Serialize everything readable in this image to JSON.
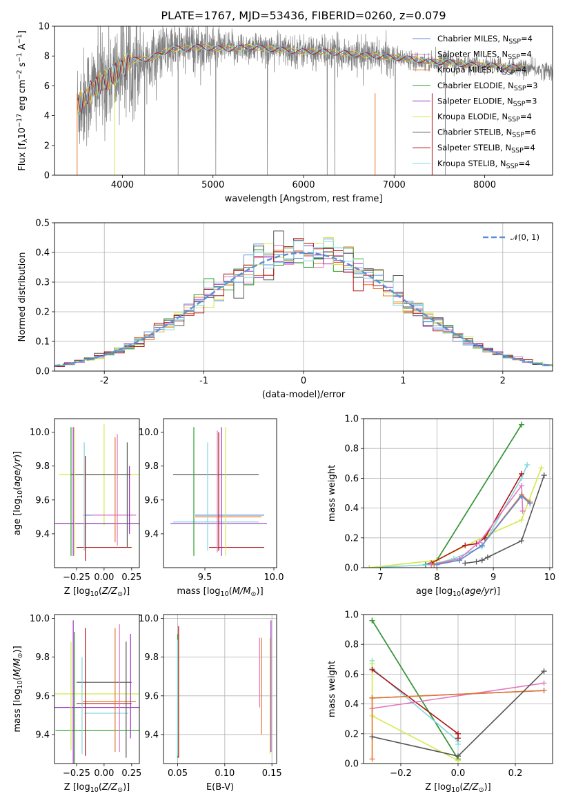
{
  "figure_title": "PLATE=1767, MJD=53436, FIBERID=0260, z=0.079",
  "colors": {
    "Chabrier MILES": "#5b8fd6",
    "Salpeter MILES": "#e377c2",
    "Kroupa MILES": "#e8742a",
    "Chabrier ELODIE": "#2ca02c",
    "Salpeter ELODIE": "#9b30c0",
    "Kroupa ELODIE": "#d4e84a",
    "Chabrier STELIB": "#555555",
    "Salpeter STELIB": "#b01010",
    "Kroupa STELIB": "#7fd8e0"
  },
  "chart_data": [
    {
      "id": "spectrum",
      "type": "line",
      "title": "PLATE=1767, MJD=53436, FIBERID=0260, z=0.079",
      "xlabel": "wavelength [Angstrom, rest frame]",
      "ylabel": "Flux [f_λ 10^-17 erg cm^-2 s^-1 A^-1]",
      "xlim": [
        3250,
        8750
      ],
      "ylim": [
        0,
        10
      ],
      "xticks": [
        4000,
        5000,
        6000,
        7000,
        8000
      ],
      "yticks": [
        0,
        2,
        4,
        6,
        8,
        10
      ],
      "grid": false,
      "legend_position": "upper-right",
      "legend": [
        {
          "name": "Chabrier MILES",
          "nssp": "4"
        },
        {
          "name": "Salpeter MILES",
          "nssp": "4"
        },
        {
          "name": "Kroupa MILES",
          "nssp": "4"
        },
        {
          "name": "Chabrier ELODIE",
          "nssp": "3"
        },
        {
          "name": "Salpeter ELODIE",
          "nssp": "3"
        },
        {
          "name": "Kroupa ELODIE",
          "nssp": "4"
        },
        {
          "name": "Chabrier STELIB",
          "nssp": "6"
        },
        {
          "name": "Salpeter STELIB",
          "nssp": "4"
        },
        {
          "name": "Kroupa STELIB",
          "nssp": "4"
        }
      ],
      "data_color": "#808080",
      "data_range": [
        3500,
        8750
      ],
      "continuum": [
        [
          3500,
          4.6
        ],
        [
          3600,
          5.3
        ],
        [
          3700,
          5.9
        ],
        [
          3800,
          6.4
        ],
        [
          3900,
          6.6
        ],
        [
          4000,
          7.3
        ],
        [
          4100,
          7.7
        ],
        [
          4200,
          7.8
        ],
        [
          4300,
          7.8
        ],
        [
          4400,
          8.1
        ],
        [
          4500,
          8.4
        ],
        [
          4600,
          8.5
        ],
        [
          4700,
          8.5
        ],
        [
          4800,
          8.6
        ],
        [
          4900,
          8.6
        ],
        [
          5000,
          8.5
        ],
        [
          5200,
          8.5
        ],
        [
          5400,
          8.6
        ],
        [
          5600,
          8.5
        ],
        [
          5800,
          8.4
        ],
        [
          6000,
          8.3
        ],
        [
          6200,
          8.3
        ],
        [
          6400,
          8.2
        ],
        [
          6600,
          8.1
        ],
        [
          6800,
          8.0
        ],
        [
          7000,
          7.9
        ],
        [
          7200,
          7.8
        ],
        [
          7400,
          7.6
        ],
        [
          7600,
          7.6
        ],
        [
          7800,
          7.4
        ],
        [
          8000,
          7.4
        ],
        [
          8200,
          7.3
        ],
        [
          8400,
          7.2
        ],
        [
          8750,
          7.0
        ]
      ]
    },
    {
      "id": "residuals",
      "type": "line",
      "xlabel": "(data-model)/error",
      "ylabel": "Normed distribution",
      "xlim": [
        -2.5,
        2.5
      ],
      "ylim": [
        0,
        0.5
      ],
      "xticks": [
        -2,
        -1,
        0,
        1,
        2
      ],
      "yticks": [
        0.0,
        0.1,
        0.2,
        0.3,
        0.4,
        0.5
      ],
      "grid": true,
      "legend_position": "upper-right",
      "series": [
        {
          "name": "𝒩(0, 1)",
          "mean": 0,
          "sigma": 1,
          "color": "#5b8fd6"
        }
      ],
      "bins": 50
    },
    {
      "id": "age_vs_Z",
      "type": "scatter",
      "xlabel": "Z [log10(Z/Z⊙)]",
      "ylabel": "age [log10(age/yr)]",
      "xlim": [
        -0.45,
        0.32
      ],
      "ylim": [
        9.2,
        10.08
      ],
      "xticks": [
        -0.25,
        0.0,
        0.25
      ],
      "xticklabels": [
        "−0.25",
        "0.00",
        "0.25"
      ],
      "yticks": [
        9.4,
        9.6,
        9.8,
        10.0
      ],
      "grid": false,
      "points": [
        {
          "series": "Kroupa ELODIE",
          "x": 0.0,
          "xerr": 0.41,
          "y": 9.75,
          "yerr": 0.3
        },
        {
          "series": "Chabrier STELIB",
          "x": -0.03,
          "xerr": 0.27,
          "y": 9.75,
          "yerr": 0.0
        },
        {
          "series": "Chabrier MILES",
          "x": 0.05,
          "xerr": 0.24,
          "y": 9.51,
          "yerr": 0.0
        },
        {
          "series": "Salpeter MILES",
          "x": 0.09,
          "xerr": 0.2,
          "y": 9.51,
          "yerr": 0.0
        },
        {
          "series": "Chabrier ELODIE",
          "x": -0.06,
          "xerr": 0.38,
          "y": 9.46,
          "yerr": 0.0
        },
        {
          "series": "Salpeter ELODIE",
          "x": -0.05,
          "xerr": 0.4,
          "y": 9.46,
          "yerr": 0.0
        },
        {
          "series": "Salpeter STELIB",
          "x": 0.0,
          "xerr": 0.25,
          "y": 9.32,
          "yerr": 0.0
        },
        {
          "series": "Chabrier ELODIE",
          "x": -0.3,
          "xerr": 0.0,
          "y": 9.65,
          "yerr": 0.38
        },
        {
          "series": "Salpeter ELODIE",
          "x": -0.28,
          "xerr": 0.0,
          "y": 9.65,
          "yerr": 0.38
        },
        {
          "series": "Kroupa ELODIE",
          "x": -0.27,
          "xerr": 0.0,
          "y": 9.65,
          "yerr": 0.38
        },
        {
          "series": "Kroupa STELIB",
          "x": -0.18,
          "xerr": 0.0,
          "y": 9.62,
          "yerr": 0.32
        },
        {
          "series": "Salpeter STELIB",
          "x": -0.17,
          "xerr": 0.0,
          "y": 9.55,
          "yerr": 0.31
        },
        {
          "series": "Kroupa MILES",
          "x": 0.1,
          "xerr": 0.0,
          "y": 9.66,
          "yerr": 0.31
        },
        {
          "series": "Salpeter MILES",
          "x": 0.12,
          "xerr": 0.0,
          "y": 9.66,
          "yerr": 0.33
        },
        {
          "series": "Chabrier STELIB",
          "x": 0.21,
          "xerr": 0.0,
          "y": 9.63,
          "yerr": 0.31
        },
        {
          "series": "Salpeter ELODIE",
          "x": 0.23,
          "xerr": 0.0,
          "y": 9.6,
          "yerr": 0.2
        }
      ]
    },
    {
      "id": "age_vs_mass",
      "type": "scatter",
      "xlabel": "mass [log10(M/M⊙)]",
      "ylabel": "",
      "xlim": [
        9.2,
        10.02
      ],
      "ylim": [
        9.2,
        10.08
      ],
      "xticks": [
        9.5,
        10.0
      ],
      "xticklabels": [
        "9.5",
        "10.0"
      ],
      "yticks": [
        9.4,
        9.6,
        9.8,
        10.0
      ],
      "grid": false,
      "points": [
        {
          "series": "Chabrier STELIB",
          "x": 9.58,
          "xerr": 0.31,
          "y": 9.75,
          "yerr": 0.0
        },
        {
          "series": "Chabrier MILES",
          "x": 9.68,
          "xerr": 0.25,
          "y": 9.51,
          "yerr": 0.0
        },
        {
          "series": "Kroupa MILES",
          "x": 9.67,
          "xerr": 0.24,
          "y": 9.5,
          "yerr": 0.0
        },
        {
          "series": "Salpeter ELODIE",
          "x": 9.6,
          "xerr": 0.35,
          "y": 9.46,
          "yerr": 0.0
        },
        {
          "series": "Kroupa STELIB",
          "x": 9.58,
          "xerr": 0.31,
          "y": 9.47,
          "yerr": 0.0
        },
        {
          "series": "Salpeter STELIB",
          "x": 9.73,
          "xerr": 0.2,
          "y": 9.32,
          "yerr": 0.0
        },
        {
          "series": "Chabrier ELODIE",
          "x": 9.42,
          "xerr": 0.0,
          "y": 9.65,
          "yerr": 0.38
        },
        {
          "series": "Kroupa STELIB",
          "x": 9.52,
          "xerr": 0.0,
          "y": 9.62,
          "yerr": 0.32
        },
        {
          "series": "Salpeter MILES",
          "x": 9.59,
          "xerr": 0.0,
          "y": 9.65,
          "yerr": 0.36
        },
        {
          "series": "Salpeter ELODIE",
          "x": 9.62,
          "xerr": 0.0,
          "y": 9.65,
          "yerr": 0.38
        },
        {
          "series": "Salpeter STELIB",
          "x": 9.6,
          "xerr": 0.0,
          "y": 9.65,
          "yerr": 0.35
        },
        {
          "series": "Kroupa ELODIE",
          "x": 9.65,
          "xerr": 0.0,
          "y": 9.65,
          "yerr": 0.38
        }
      ]
    },
    {
      "id": "massweight_vs_age",
      "type": "line",
      "xlabel": "age [log10(age/yr)]",
      "ylabel": "mass weight",
      "xlim": [
        6.7,
        10.05
      ],
      "ylim": [
        0,
        1.0
      ],
      "xticks": [
        7,
        8,
        9,
        10
      ],
      "yticks": [
        0.0,
        0.2,
        0.4,
        0.6,
        0.8,
        1.0
      ],
      "grid": true,
      "series": [
        {
          "name": "Salpeter ELODIE",
          "x": [
            7.8,
            8.0,
            9.5
          ],
          "y": [
            0.02,
            0.05,
            0.96
          ]
        },
        {
          "name": "Chabrier ELODIE",
          "x": [
            7.8,
            8.0,
            9.5
          ],
          "y": [
            0.02,
            0.05,
            0.96
          ]
        },
        {
          "name": "Kroupa STELIB",
          "x": [
            6.8,
            7.9,
            8.3,
            8.8,
            9.5,
            9.6
          ],
          "y": [
            0.0,
            0.02,
            0.06,
            0.14,
            0.6,
            0.69
          ]
        },
        {
          "name": "Kroupa ELODIE",
          "x": [
            6.8,
            8.0,
            8.9,
            9.5,
            9.85
          ],
          "y": [
            0.0,
            0.05,
            0.22,
            0.32,
            0.67
          ]
        },
        {
          "name": "Salpeter STELIB",
          "x": [
            7.9,
            8.5,
            8.7,
            8.85,
            9.5
          ],
          "y": [
            0.03,
            0.15,
            0.16,
            0.2,
            0.63
          ]
        },
        {
          "name": "Salpeter MILES",
          "x": [
            7.9,
            8.4,
            8.75,
            9.5,
            9.52
          ],
          "y": [
            0.02,
            0.06,
            0.17,
            0.55,
            0.38
          ]
        },
        {
          "name": "Kroupa MILES",
          "x": [
            7.95,
            8.4,
            8.8,
            9.5,
            9.65
          ],
          "y": [
            0.02,
            0.05,
            0.15,
            0.49,
            0.44
          ]
        },
        {
          "name": "Chabrier MILES",
          "x": [
            8.0,
            8.4,
            8.8,
            9.5,
            9.65
          ],
          "y": [
            0.02,
            0.05,
            0.15,
            0.48,
            0.43
          ]
        },
        {
          "name": "Chabrier STELIB",
          "x": [
            8.5,
            8.7,
            8.8,
            8.9,
            9.5,
            9.9
          ],
          "y": [
            0.03,
            0.04,
            0.05,
            0.07,
            0.18,
            0.62
          ]
        }
      ]
    },
    {
      "id": "mass_vs_Z",
      "type": "scatter",
      "xlabel": "Z [log10(Z/Z⊙)]",
      "ylabel": "mass [log10(M/M⊙)]",
      "xlim": [
        -0.45,
        0.32
      ],
      "ylim": [
        9.25,
        10.02
      ],
      "xticks": [
        -0.25,
        0.0,
        0.25
      ],
      "xticklabels": [
        "−0.25",
        "0.00",
        "0.25"
      ],
      "yticks": [
        9.4,
        9.6,
        9.8,
        10.0
      ],
      "grid": false,
      "points": [
        {
          "series": "Chabrier STELIB",
          "x": 0.0,
          "xerr": 0.25,
          "y": 9.67,
          "yerr": 0.0
        },
        {
          "series": "Kroupa ELODIE",
          "x": -0.05,
          "xerr": 0.4,
          "y": 9.61,
          "yerr": 0.0
        },
        {
          "series": "Kroupa MILES",
          "x": 0.05,
          "xerr": 0.24,
          "y": 9.57,
          "yerr": 0.0
        },
        {
          "series": "Salpeter STELIB",
          "x": 0.0,
          "xerr": 0.25,
          "y": 9.56,
          "yerr": 0.0
        },
        {
          "series": "Salpeter ELODIE",
          "x": -0.05,
          "xerr": 0.4,
          "y": 9.54,
          "yerr": 0.0
        },
        {
          "series": "Kroupa STELIB",
          "x": 0.02,
          "xerr": 0.2,
          "y": 9.51,
          "yerr": 0.0
        },
        {
          "series": "Chabrier ELODIE",
          "x": -0.06,
          "xerr": 0.38,
          "y": 9.42,
          "yerr": 0.0
        },
        {
          "series": "Kroupa ELODIE",
          "x": -0.3,
          "xerr": 0.0,
          "y": 9.6,
          "yerr": 0.28
        },
        {
          "series": "Salpeter ELODIE",
          "x": -0.28,
          "xerr": 0.0,
          "y": 9.62,
          "yerr": 0.37
        },
        {
          "series": "Chabrier ELODIE",
          "x": -0.27,
          "xerr": 0.0,
          "y": 9.59,
          "yerr": 0.34
        },
        {
          "series": "Kroupa STELIB",
          "x": -0.2,
          "xerr": 0.0,
          "y": 9.55,
          "yerr": 0.25
        },
        {
          "series": "Salpeter STELIB",
          "x": -0.17,
          "xerr": 0.0,
          "y": 9.62,
          "yerr": 0.33
        },
        {
          "series": "Kroupa MILES",
          "x": 0.1,
          "xerr": 0.0,
          "y": 9.63,
          "yerr": 0.32
        },
        {
          "series": "Salpeter MILES",
          "x": 0.14,
          "xerr": 0.0,
          "y": 9.64,
          "yerr": 0.33
        },
        {
          "series": "Chabrier STELIB",
          "x": 0.2,
          "xerr": 0.0,
          "y": 9.58,
          "yerr": 0.3
        },
        {
          "series": "Salpeter ELODIE",
          "x": 0.24,
          "xerr": 0.0,
          "y": 9.65,
          "yerr": 0.27
        }
      ]
    },
    {
      "id": "mass_vs_EBV",
      "type": "scatter",
      "xlabel": "E(B-V)",
      "ylabel": "",
      "xlim": [
        0.035,
        0.155
      ],
      "ylim": [
        9.25,
        10.02
      ],
      "xticks": [
        0.05,
        0.1,
        0.15
      ],
      "xticklabels": [
        "0.05",
        "0.10",
        "0.15"
      ],
      "yticks": [
        9.4,
        9.6,
        9.8,
        10.0
      ],
      "grid": true,
      "points": [
        {
          "series": "Salpeter STELIB",
          "x": 0.051,
          "xerr": 0.0,
          "y": 9.62,
          "yerr": 0.34
        },
        {
          "series": "Chabrier ELODIE",
          "x": 0.05,
          "xerr": 0.0,
          "y": 9.6,
          "yerr": 0.32
        },
        {
          "series": "Kroupa STELIB",
          "x": 0.05,
          "xerr": 0.0,
          "y": 9.59,
          "yerr": 0.3
        },
        {
          "series": "Salpeter MILES",
          "x": 0.137,
          "xerr": 0.0,
          "y": 9.72,
          "yerr": 0.18
        },
        {
          "series": "Kroupa MILES",
          "x": 0.139,
          "xerr": 0.0,
          "y": 9.65,
          "yerr": 0.25
        },
        {
          "series": "Salpeter ELODIE",
          "x": 0.149,
          "xerr": 0.0,
          "y": 9.65,
          "yerr": 0.34
        },
        {
          "series": "Kroupa ELODIE",
          "x": 0.148,
          "xerr": 0.0,
          "y": 9.6,
          "yerr": 0.3
        }
      ]
    },
    {
      "id": "massweight_vs_Z",
      "type": "line",
      "xlabel": "Z [log10(Z/Z⊙)]",
      "ylabel": "mass weight",
      "xlim": [
        -0.33,
        0.33
      ],
      "ylim": [
        0,
        1.0
      ],
      "xticks": [
        -0.2,
        0.0,
        0.2
      ],
      "xticklabels": [
        "−0.2",
        "0.0",
        "0.2"
      ],
      "yticks": [
        0.0,
        0.2,
        0.4,
        0.6,
        0.8,
        1.0
      ],
      "grid": true,
      "series": [
        {
          "name": "Salpeter ELODIE",
          "x": [
            -0.3,
            0.0
          ],
          "y": [
            0.96,
            0.03
          ]
        },
        {
          "name": "Chabrier ELODIE",
          "x": [
            -0.3,
            0.0
          ],
          "y": [
            0.96,
            0.03
          ]
        },
        {
          "name": "Kroupa STELIB",
          "x": [
            -0.3,
            -0.3,
            0.0,
            0.0
          ],
          "y": [
            0.69,
            0.64,
            0.15,
            0.13
          ]
        },
        {
          "name": "Kroupa ELODIE",
          "x": [
            -0.3,
            -0.3,
            0.0
          ],
          "y": [
            0.67,
            0.32,
            0.02
          ]
        },
        {
          "name": "Salpeter STELIB",
          "x": [
            -0.3,
            0.0,
            0.0
          ],
          "y": [
            0.63,
            0.2,
            0.17
          ]
        },
        {
          "name": "Salpeter MILES",
          "x": [
            -0.3,
            0.3
          ],
          "y": [
            0.37,
            0.54
          ]
        },
        {
          "name": "Chabrier MILES",
          "x": [
            -0.3,
            0.3
          ],
          "y": [
            0.44,
            0.49
          ]
        },
        {
          "name": "Kroupa MILES",
          "x": [
            -0.3,
            -0.3,
            0.3
          ],
          "y": [
            0.03,
            0.44,
            0.49
          ]
        },
        {
          "name": "Chabrier STELIB",
          "x": [
            -0.3,
            0.0,
            0.3
          ],
          "y": [
            0.18,
            0.05,
            0.62
          ]
        }
      ]
    }
  ]
}
